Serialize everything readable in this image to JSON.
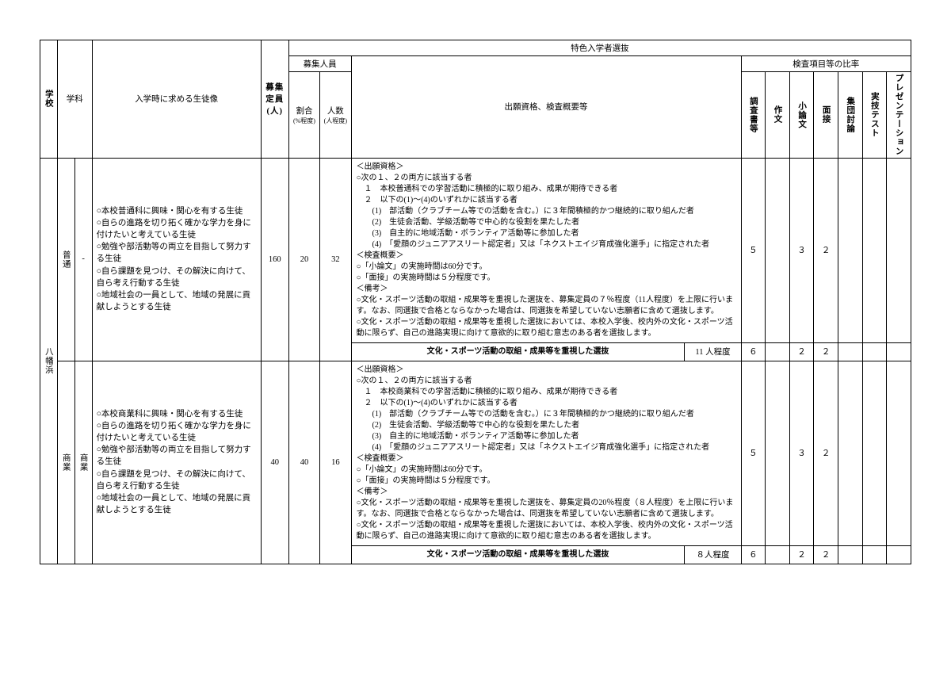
{
  "headers": {
    "top": "特色入学者選抜",
    "school": "学校",
    "dept": "学科",
    "profile": "入学時に求める生徒像",
    "capacity": "募集定員(人)",
    "recruit": "募集人員",
    "rate": "割合",
    "rate_sub": "(%程度)",
    "num": "人数",
    "num_sub": "(人程度)",
    "desc": "出願資格、検査概要等",
    "ratio_header": "検査項目等の比率",
    "ratios": [
      "調査書等",
      "作文",
      "小論文",
      "面接",
      "集団討論",
      "実技テスト",
      "プレゼンテーション"
    ]
  },
  "school": "八幡浜",
  "rows": [
    {
      "dept": "普通",
      "sub": "-",
      "profile": "○本校普通科に興味・関心を有する生徒\n○自らの進路を切り拓く確かな学力を身に付けたいと考えている生徒\n○勉強や部活動等の両立を目指して努力する生徒\n○自ら課題を見つけ、その解決に向けて、自ら考え行動する生徒\n○地域社会の一員として、地域の発展に貢献しようとする生徒",
      "capacity": "160",
      "rate": "20",
      "num": "32",
      "desc": "＜出願資格＞\n○次の１、２の両方に該当する者\n　１　本校普通科での学習活動に積極的に取り組み、成果が期待できる者\n　２　以下の(1)～(4)のいずれかに該当する者\n　　(1)　部活動（クラブチーム等での活動を含む。）に３年間積極的かつ継続的に取り組んだ者\n　　(2)　生徒会活動、学級活動等で中心的な役割を果たした者\n　　(3)　自主的に地域活動・ボランティア活動等に参加した者\n　　(4)　「愛顔のジュニアアスリート認定者」又は「ネクストエイジ育成強化選手」に指定された者\n＜検査概要＞\n○「小論文」の実施時間は60分です。\n○「面接」の実施時間は５分程度です。\n＜備考＞\n○文化・スポーツ活動の取組・成果等を重視した選抜を、募集定員の７％程度（11人程度）を上限に行います。なお、同選抜で合格とならなかった場合は、同選抜を希望していない志願者に含めて選抜します。\n○文化・スポーツ活動の取組・成果等を重視した選抜においては、本校入学後、校内外の文化・スポーツ活動に限らず、自己の進路実現に向けて意欲的に取り組む意志のある者を選抜します。",
      "r": [
        "５",
        "",
        "３",
        "２",
        "",
        "",
        ""
      ],
      "sub_label": "文化・スポーツ活動の取組・成果等を重視した選抜",
      "sub_limit": "11 人程度",
      "sub_r": [
        "６",
        "",
        "２",
        "２",
        "",
        "",
        ""
      ]
    },
    {
      "dept": "商業",
      "sub": "商業",
      "profile": "○本校商業科に興味・関心を有する生徒\n○自らの進路を切り拓く確かな学力を身に付けたいと考えている生徒\n○勉強や部活動等の両立を目指して努力する生徒\n○自ら課題を見つけ、その解決に向けて、自ら考え行動する生徒\n○地域社会の一員として、地域の発展に貢献しようとする生徒",
      "capacity": "40",
      "rate": "40",
      "num": "16",
      "desc": "＜出願資格＞\n○次の１、２の両方に該当する者\n　１　本校商業科での学習活動に積極的に取り組み、成果が期待できる者\n　２　以下の(1)～(4)のいずれかに該当する者\n　　(1)　部活動（クラブチーム等での活動を含む。）に３年間積極的かつ継続的に取り組んだ者\n　　(2)　生徒会活動、学級活動等で中心的な役割を果たした者\n　　(3)　自主的に地域活動・ボランティア活動等に参加した者\n　　(4)　「愛顔のジュニアアスリート認定者」又は「ネクストエイジ育成強化選手」に指定された者\n＜検査概要＞\n○「小論文」の実施時間は60分です。\n○「面接」の実施時間は５分程度です。\n＜備考＞\n○文化・スポーツ活動の取組・成果等を重視した選抜を、募集定員の20％程度（８人程度）を上限に行います。なお、同選抜で合格とならなかった場合は、同選抜を希望していない志願者に含めて選抜します。\n○文化・スポーツ活動の取組・成果等を重視した選抜においては、本校入学後、校内外の文化・スポーツ活動に限らず、自己の進路実現に向けて意欲的に取り組む意志のある者を選抜します。",
      "r": [
        "５",
        "",
        "３",
        "２",
        "",
        "",
        ""
      ],
      "sub_label": "文化・スポーツ活動の取組・成果等を重視した選抜",
      "sub_limit": "８人程度",
      "sub_r": [
        "６",
        "",
        "２",
        "２",
        "",
        "",
        ""
      ]
    }
  ]
}
